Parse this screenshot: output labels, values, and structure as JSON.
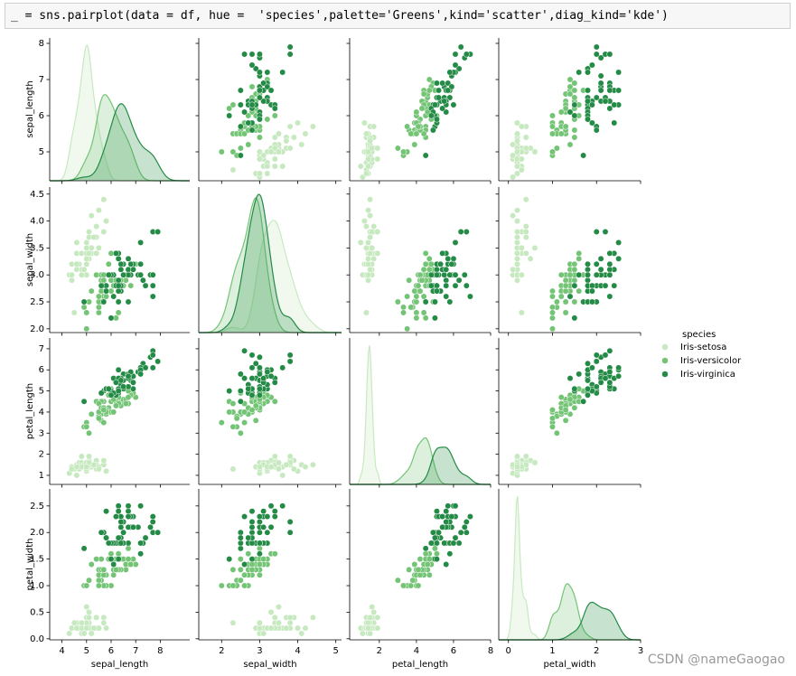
{
  "code_cell": {
    "text": "_ = sns.pairplot(data = df, hue =  'species',palette='Greens',kind='scatter',diag_kind='kde')"
  },
  "watermark": "CSDN @nameGaogao",
  "chart_data": {
    "type": "pairplot",
    "diag_kind": "kde",
    "hue_title": "species",
    "variables": [
      "sepal_length",
      "sepal_width",
      "petal_length",
      "petal_width"
    ],
    "x_axes": [
      {
        "lim": [
          3.5,
          9.2
        ],
        "ticks": [
          4,
          5,
          6,
          7,
          8
        ]
      },
      {
        "lim": [
          1.4,
          5.15
        ],
        "ticks": [
          2,
          3,
          4,
          5
        ]
      },
      {
        "lim": [
          0.4,
          8
        ],
        "ticks": [
          2,
          4,
          6,
          8
        ]
      },
      {
        "lim": [
          -0.22,
          3
        ],
        "ticks": [
          0,
          1,
          2,
          3
        ]
      }
    ],
    "y_axes": [
      {
        "lim": [
          4.2,
          8.15
        ],
        "ticks": [
          5,
          6,
          7,
          8
        ]
      },
      {
        "lim": [
          1.93,
          4.63
        ],
        "ticks": [
          {
            "value": 2,
            "label": "2.0"
          },
          2.5,
          {
            "value": 3,
            "label": "3.0"
          },
          3.5,
          {
            "value": 4,
            "label": "4.0"
          },
          4.5
        ]
      },
      {
        "lim": [
          0.57,
          7.51
        ],
        "ticks": [
          1,
          2,
          3,
          4,
          5,
          6,
          7
        ]
      },
      {
        "lim": [
          -0.02,
          2.82
        ],
        "ticks": [
          {
            "value": 0,
            "label": "0.0"
          },
          0.5,
          {
            "value": 1,
            "label": "1.0"
          },
          1.5,
          {
            "value": 2,
            "label": "2.0"
          },
          2.5
        ]
      }
    ],
    "series": [
      {
        "name": "Iris-setosa",
        "color": "#c7e9c0",
        "sepal_length": [
          5.1,
          4.9,
          4.7,
          4.6,
          5.0,
          5.4,
          4.6,
          5.0,
          4.4,
          4.9,
          5.4,
          4.8,
          4.8,
          4.3,
          5.8,
          5.7,
          5.4,
          5.1,
          5.7,
          5.1,
          5.4,
          5.1,
          4.6,
          5.1,
          4.8,
          5.0,
          5.0,
          5.2,
          5.2,
          4.7,
          4.8,
          5.4,
          5.2,
          5.5,
          4.9,
          5.0,
          5.5,
          4.9,
          4.4,
          5.1,
          5.0,
          4.5,
          4.4,
          5.0,
          5.1,
          4.8,
          5.1,
          4.6,
          5.3,
          5.0
        ],
        "sepal_width": [
          3.5,
          3.0,
          3.2,
          3.1,
          3.6,
          3.9,
          3.4,
          3.4,
          2.9,
          3.1,
          3.7,
          3.4,
          3.0,
          3.0,
          4.0,
          4.4,
          3.9,
          3.5,
          3.8,
          3.8,
          3.4,
          3.7,
          3.6,
          3.3,
          3.4,
          3.0,
          3.4,
          3.5,
          3.4,
          3.2,
          3.1,
          3.4,
          4.1,
          4.2,
          3.1,
          3.2,
          3.5,
          3.1,
          3.0,
          3.4,
          3.5,
          2.3,
          3.2,
          3.5,
          3.8,
          3.0,
          3.8,
          3.2,
          3.7,
          3.3
        ],
        "petal_length": [
          1.4,
          1.4,
          1.3,
          1.5,
          1.4,
          1.7,
          1.4,
          1.5,
          1.4,
          1.5,
          1.5,
          1.6,
          1.4,
          1.1,
          1.2,
          1.5,
          1.3,
          1.4,
          1.7,
          1.5,
          1.7,
          1.5,
          1.0,
          1.7,
          1.9,
          1.6,
          1.6,
          1.5,
          1.4,
          1.6,
          1.6,
          1.5,
          1.5,
          1.4,
          1.5,
          1.2,
          1.3,
          1.5,
          1.3,
          1.5,
          1.3,
          1.3,
          1.3,
          1.6,
          1.9,
          1.4,
          1.6,
          1.4,
          1.5,
          1.4
        ],
        "petal_width": [
          0.2,
          0.2,
          0.2,
          0.2,
          0.2,
          0.4,
          0.3,
          0.2,
          0.2,
          0.1,
          0.2,
          0.2,
          0.1,
          0.1,
          0.2,
          0.4,
          0.4,
          0.3,
          0.3,
          0.3,
          0.2,
          0.4,
          0.2,
          0.5,
          0.2,
          0.2,
          0.4,
          0.2,
          0.2,
          0.2,
          0.2,
          0.4,
          0.1,
          0.2,
          0.1,
          0.2,
          0.2,
          0.1,
          0.2,
          0.2,
          0.3,
          0.3,
          0.2,
          0.6,
          0.4,
          0.3,
          0.2,
          0.2,
          0.2,
          0.2
        ]
      },
      {
        "name": "Iris-versicolor",
        "color": "#74c476",
        "sepal_length": [
          7.0,
          6.4,
          6.9,
          5.5,
          6.5,
          5.7,
          6.3,
          4.9,
          6.6,
          5.2,
          5.0,
          5.9,
          6.0,
          6.1,
          5.6,
          6.7,
          5.6,
          5.8,
          6.2,
          5.6,
          5.9,
          6.1,
          6.3,
          6.1,
          6.4,
          6.6,
          6.8,
          6.7,
          6.0,
          5.7,
          5.5,
          5.5,
          5.8,
          6.0,
          5.4,
          6.0,
          6.7,
          6.3,
          5.6,
          5.5,
          5.5,
          6.1,
          5.8,
          5.0,
          5.6,
          5.7,
          5.7,
          6.2,
          5.1,
          5.7
        ],
        "sepal_width": [
          3.2,
          3.2,
          3.1,
          2.3,
          2.8,
          2.8,
          3.3,
          2.4,
          2.9,
          2.7,
          2.0,
          3.0,
          2.2,
          2.9,
          2.9,
          3.1,
          3.0,
          2.7,
          2.2,
          2.5,
          3.2,
          2.8,
          2.5,
          2.8,
          2.9,
          3.0,
          2.8,
          3.0,
          2.9,
          2.6,
          2.4,
          2.4,
          2.7,
          2.7,
          3.0,
          3.4,
          3.1,
          2.3,
          3.0,
          2.5,
          2.6,
          3.0,
          2.6,
          2.3,
          2.7,
          3.0,
          2.9,
          2.9,
          2.5,
          2.8
        ],
        "petal_length": [
          4.7,
          4.5,
          4.9,
          4.0,
          4.6,
          4.5,
          4.7,
          3.3,
          4.6,
          3.9,
          3.5,
          4.2,
          4.0,
          4.7,
          3.6,
          4.4,
          4.5,
          4.1,
          4.5,
          3.9,
          4.8,
          4.0,
          4.9,
          4.7,
          4.3,
          4.4,
          4.8,
          5.0,
          4.5,
          3.5,
          3.8,
          3.7,
          3.9,
          5.1,
          4.5,
          4.5,
          4.7,
          4.4,
          4.1,
          4.0,
          4.4,
          4.6,
          4.0,
          3.3,
          4.2,
          4.2,
          4.2,
          4.3,
          3.0,
          4.1
        ],
        "petal_width": [
          1.4,
          1.5,
          1.5,
          1.3,
          1.5,
          1.3,
          1.6,
          1.0,
          1.3,
          1.4,
          1.0,
          1.5,
          1.0,
          1.4,
          1.3,
          1.4,
          1.5,
          1.0,
          1.5,
          1.1,
          1.8,
          1.3,
          1.5,
          1.2,
          1.3,
          1.4,
          1.4,
          1.7,
          1.5,
          1.0,
          1.1,
          1.0,
          1.2,
          1.6,
          1.5,
          1.6,
          1.5,
          1.3,
          1.3,
          1.3,
          1.2,
          1.4,
          1.2,
          1.0,
          1.3,
          1.2,
          1.3,
          1.3,
          1.1,
          1.3
        ]
      },
      {
        "name": "Iris-virginica",
        "color": "#238b45",
        "sepal_length": [
          6.3,
          5.8,
          7.1,
          6.3,
          6.5,
          7.6,
          4.9,
          7.3,
          6.7,
          7.2,
          6.5,
          6.4,
          6.8,
          5.7,
          5.8,
          6.4,
          6.5,
          7.7,
          7.7,
          6.0,
          6.9,
          5.6,
          7.7,
          6.3,
          6.7,
          7.2,
          6.2,
          6.1,
          6.4,
          7.2,
          7.4,
          7.9,
          6.4,
          6.3,
          6.1,
          7.7,
          6.3,
          6.4,
          6.0,
          6.9,
          6.7,
          6.9,
          5.8,
          6.8,
          6.7,
          6.7,
          6.3,
          6.5,
          6.2,
          5.9
        ],
        "sepal_width": [
          3.3,
          2.7,
          3.0,
          2.9,
          3.0,
          3.0,
          2.5,
          2.9,
          2.5,
          3.6,
          3.2,
          2.7,
          3.0,
          2.5,
          2.8,
          3.2,
          3.0,
          3.8,
          2.6,
          2.2,
          3.2,
          2.8,
          2.8,
          2.7,
          3.3,
          3.2,
          2.8,
          3.0,
          2.8,
          3.0,
          2.8,
          3.8,
          2.8,
          2.8,
          2.6,
          3.0,
          3.4,
          3.1,
          3.0,
          3.1,
          3.1,
          3.1,
          2.7,
          3.2,
          3.3,
          3.0,
          2.5,
          3.0,
          3.4,
          3.0
        ],
        "petal_length": [
          6.0,
          5.1,
          5.9,
          5.6,
          5.8,
          6.6,
          4.5,
          6.3,
          5.8,
          6.1,
          5.1,
          5.3,
          5.5,
          5.0,
          5.1,
          5.3,
          5.5,
          6.7,
          6.9,
          5.0,
          5.7,
          4.9,
          6.7,
          4.9,
          5.7,
          6.0,
          4.8,
          4.9,
          5.6,
          5.8,
          6.1,
          6.4,
          5.6,
          5.1,
          5.6,
          6.1,
          5.6,
          5.5,
          4.8,
          5.4,
          5.6,
          5.1,
          5.1,
          5.9,
          5.7,
          5.2,
          5.0,
          5.2,
          5.4,
          5.1
        ],
        "petal_width": [
          2.5,
          1.9,
          2.1,
          1.8,
          2.2,
          2.1,
          1.7,
          1.8,
          1.8,
          2.5,
          2.0,
          1.9,
          2.1,
          2.0,
          2.4,
          2.3,
          1.8,
          2.2,
          2.3,
          1.5,
          2.3,
          2.0,
          2.0,
          1.8,
          2.1,
          1.8,
          1.8,
          1.8,
          2.1,
          1.6,
          1.9,
          2.0,
          2.2,
          1.5,
          1.4,
          2.3,
          2.4,
          1.8,
          1.8,
          2.1,
          2.4,
          2.3,
          1.9,
          2.3,
          2.5,
          2.3,
          1.9,
          2.0,
          2.3,
          1.8
        ]
      }
    ]
  }
}
